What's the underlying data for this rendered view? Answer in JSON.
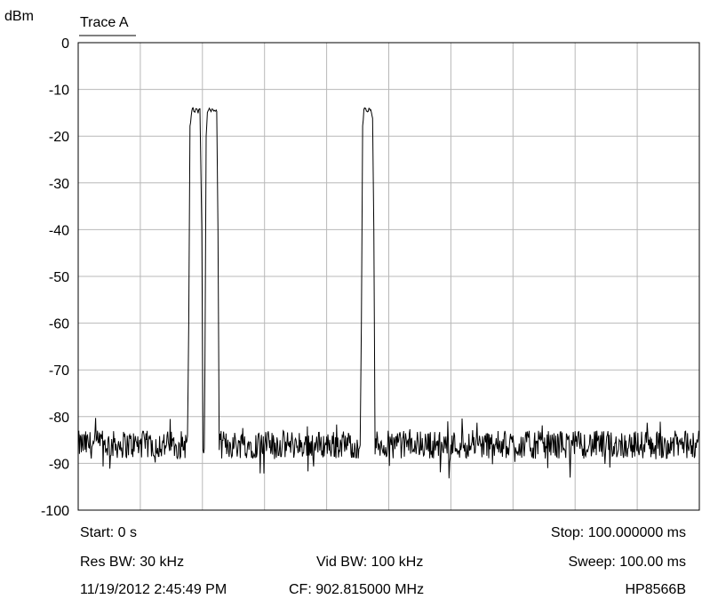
{
  "chart_data": {
    "type": "line",
    "title": "",
    "ylabel": "dBm",
    "xlabel": "",
    "legend": {
      "label": "Trace A",
      "placement": "top-left"
    },
    "grid": true,
    "xlim": [
      0,
      100
    ],
    "x_unit": "ms",
    "ylim": [
      -100,
      0
    ],
    "y_ticks": [
      0,
      -10,
      -20,
      -30,
      -40,
      -50,
      -60,
      -70,
      -80,
      -90,
      -100
    ],
    "x_divisions": 10,
    "series": [
      {
        "name": "Trace A",
        "noise_floor_dbm": -86,
        "noise_spread_db": 6,
        "x": [
          0,
          17.6,
          17.8,
          18.0,
          18.3,
          18.5,
          18.7,
          19.0,
          19.3,
          19.6,
          19.9,
          20.1,
          20.2,
          20.3,
          20.4,
          20.6,
          20.8,
          21.1,
          21.4,
          21.7,
          22.0,
          22.3,
          22.5,
          22.7,
          45.4,
          45.6,
          45.8,
          46.0,
          46.2,
          46.5,
          46.8,
          47.1,
          47.4,
          47.6,
          47.8,
          100
        ],
        "y": [
          -86,
          -86,
          -60,
          -18,
          -14.5,
          -14,
          -15,
          -14.2,
          -14.8,
          -14.3,
          -40,
          -86,
          -87,
          -86,
          -70,
          -20,
          -15,
          -14,
          -14.6,
          -14.2,
          -14.8,
          -14.4,
          -40,
          -86,
          -86,
          -60,
          -18,
          -14.5,
          -14,
          -14.8,
          -14.2,
          -14.6,
          -16,
          -40,
          -86,
          -86
        ]
      }
    ]
  },
  "labels": {
    "y_unit": "dBm",
    "trace": "Trace A",
    "start": "Start: 0 s",
    "stop": "Stop: 100.000000 ms",
    "res_bw": "Res BW: 30 kHz",
    "vid_bw": "Vid BW: 100 kHz",
    "sweep": "Sweep: 100.00 ms",
    "datetime": "11/19/2012 2:45:49 PM",
    "cf": "CF: 902.815000 MHz",
    "model": "HP8566B"
  },
  "colors": {
    "trace": "#000000",
    "grid": "#b8b8b8",
    "frame": "#000000"
  }
}
